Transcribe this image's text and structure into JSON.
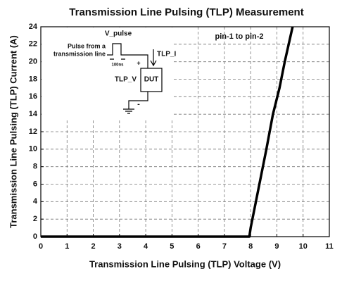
{
  "chart_data": {
    "type": "line",
    "title": "Transmission Line Pulsing (TLP) Measurement",
    "x_label": "Transmission Line Pulsing (TLP) Voltage (V)",
    "y_label": "Transmission Line Pulsing (TLP) Current (A)",
    "annotation": "pin-1 to pin-2",
    "inset": {
      "v_pulse": "V_pulse",
      "source_label": [
        "Pulse from a",
        "transmission line"
      ],
      "width_label": "100ns",
      "current_label": "TLP_I",
      "voltage_label": "TLP_V",
      "device": "DUT",
      "plus": "+",
      "minus": "-"
    },
    "x": [
      0,
      7.95,
      8.0,
      8.2,
      8.4,
      8.6,
      8.85,
      9.1,
      9.3,
      9.45,
      9.6
    ],
    "series": [
      {
        "color": "#000000",
        "values": [
          0,
          0,
          1,
          4,
          7,
          10,
          14,
          17,
          20,
          22,
          24
        ]
      }
    ],
    "xlim": [
      0,
      11
    ],
    "xticks": [
      0,
      1,
      2,
      3,
      4,
      5,
      6,
      7,
      8,
      9,
      10,
      11
    ],
    "ylim": [
      0,
      24
    ],
    "yticks": [
      0,
      2,
      4,
      6,
      8,
      10,
      12,
      14,
      16,
      18,
      20,
      22,
      24
    ],
    "grid": true
  }
}
